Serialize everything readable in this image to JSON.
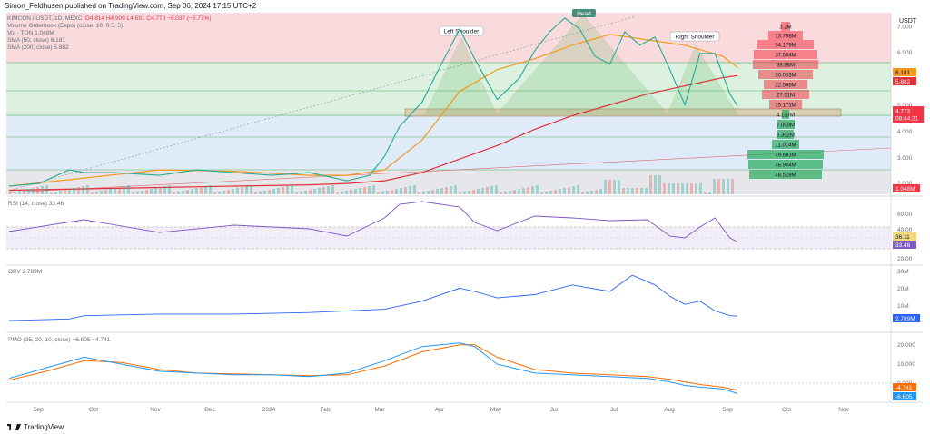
{
  "publish_line": "Simon_Feldhusen published on TradingView.com, Sep 06, 2024 17:15 UTC+2",
  "brand": "TradingView",
  "main_legend": {
    "symbol": "KIMCON / USDT, 1D, MEXC",
    "ohlc": "O4.814 H4.909 L4.691 C4.773 −0.037 (−0.77%)",
    "vrvp": "Volume Orderbook (Expo) (close, 10, 0.5, 5)",
    "vol": "Vol · TON 1.048M",
    "sma50": "SMA (50, close) 6.181",
    "sma200": "SMA (200, close) 5.882"
  },
  "rsi_legend": "RSI (14, close) 33.46",
  "obv_legend": "OBV 2.789M",
  "pmo_legend": "PMO (35, 20, 10, close) −6.605 −4.741",
  "annotations": {
    "left_shoulder": "Left Shoulder",
    "head": "Head",
    "right_shoulder": "Right Shoulder"
  },
  "price_axis": {
    "currency": "USDT",
    "ticks": [
      "7.000",
      "6.000",
      "5.000",
      "4.000",
      "3.000",
      "2.000"
    ]
  },
  "price_badges": {
    "sma50": "6.181",
    "sma200": "5.882",
    "last": "4.773",
    "countdown": "08:44:21",
    "volume": "1.048M"
  },
  "rsi_axis": {
    "ticks": [
      "60.00",
      "40.00",
      "20.00"
    ],
    "badge1": "36.11",
    "badge2": "33.46"
  },
  "obv_axis": {
    "ticks": [
      "30M",
      "20M",
      "10M"
    ],
    "badge": "2.789M"
  },
  "pmo_axis": {
    "ticks": [
      "20.000",
      "10.000",
      "0.000"
    ],
    "badge1": "-4.741",
    "badge2": "-6.605"
  },
  "time_axis": [
    "Sep",
    "Oct",
    "Nov",
    "Dec",
    "2024",
    "Feb",
    "Mar",
    "Apr",
    "May",
    "Jun",
    "Jul",
    "Aug",
    "Sep",
    "Oct",
    "Nov"
  ],
  "orderbook_labels": [
    "3.2M",
    "13.708M",
    "34.179M",
    "37.504M",
    "38.86M",
    "30.033M",
    "22.508M",
    "27.51M",
    "15.171M",
    "4.137M",
    "7.009M",
    "6.302M",
    "11.014M",
    "49.603M",
    "48.904M",
    "48.528M"
  ],
  "colors": {
    "sma50": "#f29b1f",
    "sma200": "#e0313a",
    "rsi": "#7e57c2",
    "obv": "#2962ff",
    "pmo": "#2196f3",
    "pmo_signal": "#ff6d00",
    "ask": "#f23645",
    "bid": "#22ab5a"
  },
  "chart_data": [
    {
      "type": "line",
      "name": "price",
      "ylim": [
        1.5,
        8.2
      ],
      "series": [
        {
          "name": "KIMCON / USDT",
          "x": [
            0,
            4,
            8,
            10,
            14,
            20,
            25,
            30,
            35,
            40,
            45,
            48,
            50,
            52,
            55,
            57,
            60,
            62,
            65,
            68,
            70,
            72,
            74,
            76,
            78,
            80,
            82,
            84,
            86,
            88,
            90,
            92,
            94,
            96,
            97
          ],
          "values": [
            1.8,
            1.9,
            2.4,
            2.3,
            2.3,
            2.2,
            2.4,
            2.3,
            2.2,
            2.3,
            2.0,
            2.2,
            2.9,
            4.0,
            4.9,
            6.0,
            7.6,
            6.5,
            5.0,
            5.8,
            6.8,
            7.5,
            8.0,
            7.6,
            6.6,
            6.3,
            7.5,
            7.0,
            7.3,
            6.1,
            4.8,
            6.7,
            6.7,
            5.2,
            4.77
          ]
        },
        {
          "name": "SMA (50, close)",
          "x": [
            0,
            10,
            20,
            30,
            40,
            45,
            50,
            55,
            60,
            65,
            70,
            75,
            80,
            85,
            90,
            95,
            97
          ],
          "values": [
            1.8,
            2.1,
            2.4,
            2.35,
            2.2,
            2.2,
            2.4,
            3.5,
            5.3,
            6.1,
            6.5,
            7.0,
            7.4,
            7.2,
            7.0,
            6.6,
            6.181
          ]
        },
        {
          "name": "SMA (200, close)",
          "x": [
            0,
            10,
            20,
            30,
            40,
            45,
            50,
            55,
            60,
            65,
            70,
            75,
            80,
            85,
            90,
            95,
            97
          ],
          "values": [
            1.65,
            1.7,
            1.75,
            1.8,
            1.85,
            1.9,
            2.0,
            2.3,
            2.8,
            3.3,
            3.9,
            4.4,
            4.8,
            5.2,
            5.5,
            5.8,
            5.882
          ]
        }
      ]
    },
    {
      "type": "line",
      "name": "RSI",
      "ylim": [
        10,
        80
      ],
      "series": [
        {
          "name": "RSI",
          "x": [
            0,
            10,
            20,
            30,
            40,
            45,
            50,
            52,
            55,
            60,
            62,
            65,
            70,
            75,
            80,
            85,
            88,
            90,
            92,
            94,
            96,
            97
          ],
          "values": [
            45,
            58,
            44,
            52,
            48,
            40,
            60,
            75,
            78,
            72,
            55,
            46,
            62,
            60,
            57,
            58,
            40,
            38,
            50,
            60,
            38,
            33.46
          ]
        }
      ]
    },
    {
      "type": "line",
      "name": "OBV",
      "ylim": [
        -5,
        32
      ],
      "series": [
        {
          "name": "OBV",
          "x": [
            0,
            8,
            10,
            20,
            30,
            40,
            45,
            50,
            55,
            60,
            62,
            65,
            70,
            75,
            80,
            83,
            86,
            88,
            90,
            92,
            94,
            96,
            97
          ],
          "values": [
            0,
            1,
            3,
            4,
            4,
            5,
            6,
            7,
            12,
            20,
            18,
            14,
            16,
            22,
            18,
            28,
            22,
            15,
            10,
            12,
            6,
            3,
            2.789
          ]
        }
      ]
    },
    {
      "type": "line",
      "name": "PMO",
      "ylim": [
        -10,
        25
      ],
      "series": [
        {
          "name": "PMO",
          "x": [
            0,
            5,
            10,
            15,
            20,
            25,
            30,
            35,
            40,
            45,
            50,
            55,
            60,
            62,
            65,
            70,
            75,
            80,
            85,
            88,
            90,
            92,
            95,
            97
          ],
          "values": [
            2,
            8,
            14,
            10,
            6,
            5,
            4,
            4,
            3,
            5,
            12,
            20,
            22,
            20,
            10,
            5,
            4,
            3,
            2,
            0,
            -2,
            -3,
            -4,
            -6.605
          ]
        },
        {
          "name": "Signal",
          "x": [
            0,
            5,
            10,
            15,
            20,
            25,
            30,
            35,
            40,
            45,
            50,
            55,
            60,
            62,
            65,
            70,
            75,
            80,
            85,
            88,
            90,
            92,
            95,
            97
          ],
          "values": [
            1,
            6,
            12,
            11,
            7,
            5,
            4.5,
            4,
            3.5,
            4,
            9,
            17,
            21,
            21,
            14,
            7,
            5,
            4,
            3,
            1.5,
            0,
            -1.5,
            -3,
            -4.741
          ]
        }
      ]
    }
  ]
}
